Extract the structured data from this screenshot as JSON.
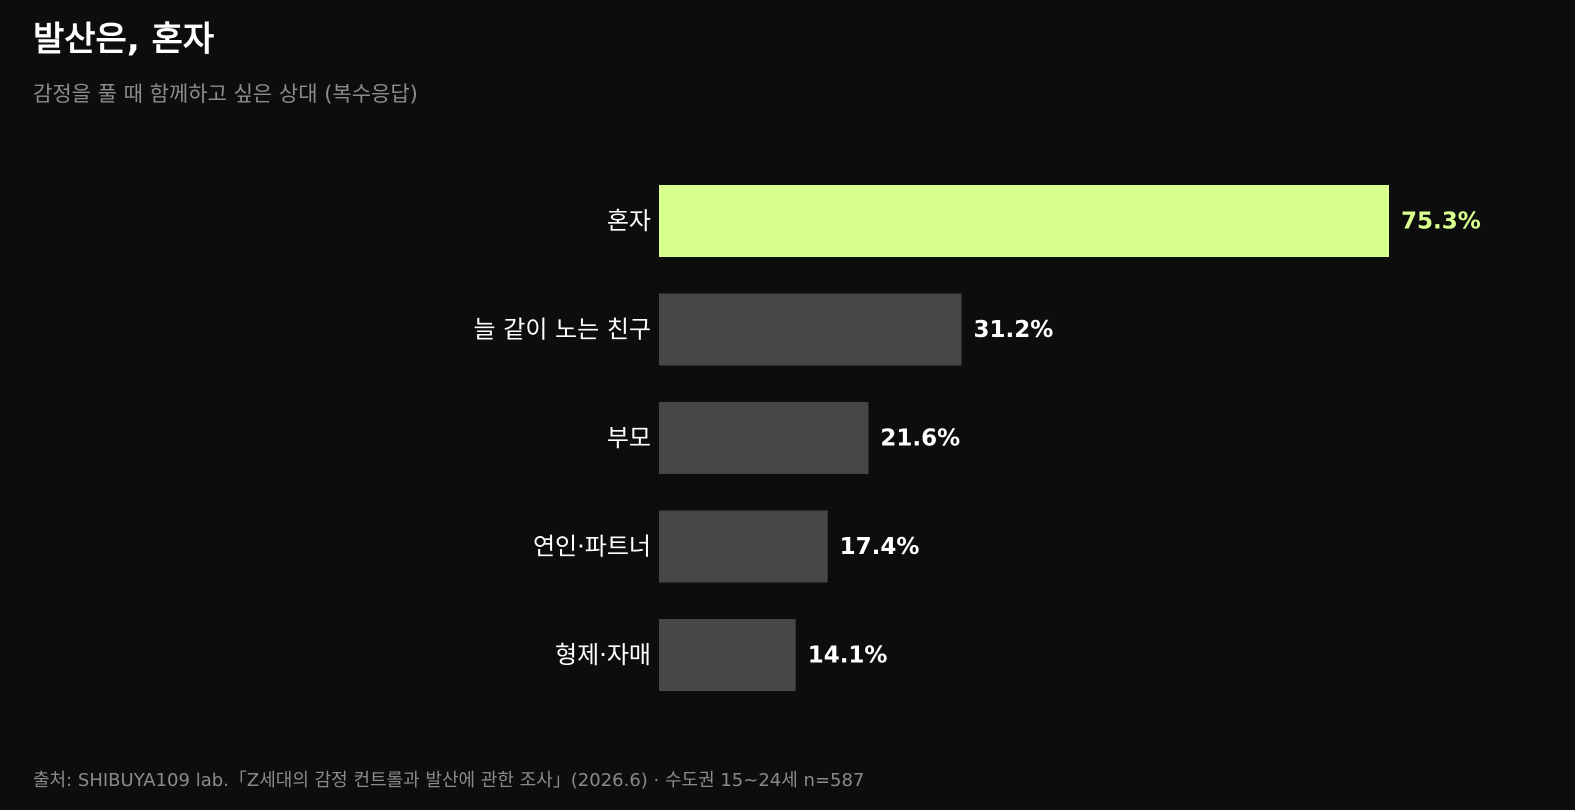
{
  "chart_data": {
    "type": "bar",
    "orientation": "horizontal",
    "title": "발산은, 혼자",
    "subtitle": "감정을 풀 때 함께하고 싶은 상대 (복수응답)",
    "categories": [
      "혼자",
      "늘 같이 노는 친구",
      "부모",
      "연인·파트너",
      "형제·자매"
    ],
    "values": [
      75.3,
      31.2,
      21.6,
      17.4,
      14.1
    ],
    "value_labels": [
      "75.3%",
      "31.2%",
      "21.6%",
      "17.4%",
      "14.1%"
    ],
    "colors": [
      "#d9ff8f",
      "#464646",
      "#464646",
      "#464646",
      "#464646"
    ],
    "value_label_colors": [
      "#d9ff8f",
      "#ffffff",
      "#ffffff",
      "#ffffff",
      "#ffffff"
    ],
    "source": "출처: SHIBUYA109 lab.「Z세대의 감정 컨트롤과 발산에 관한 조사」(2026.6) · 수도권 15~24세 n=587"
  }
}
